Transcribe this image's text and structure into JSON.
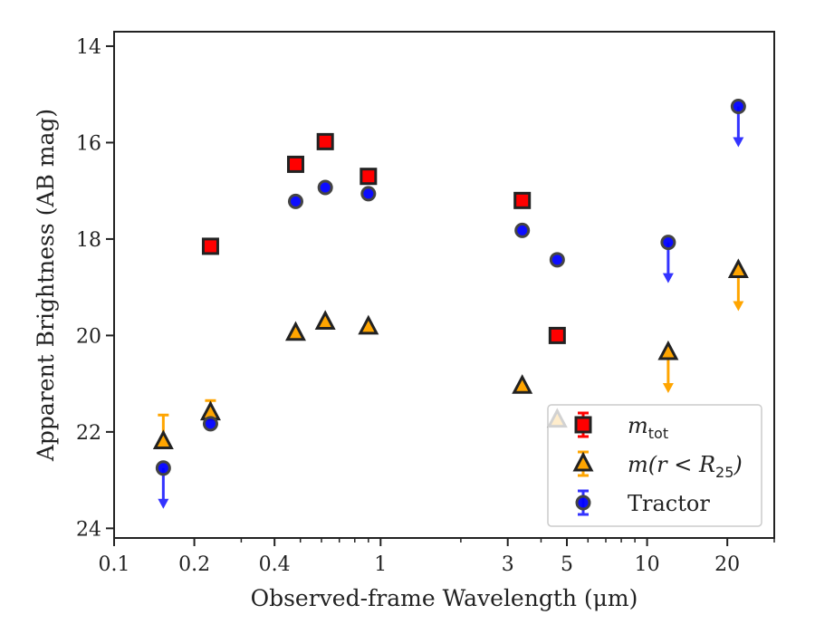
{
  "chart_data": {
    "type": "scatter",
    "xscale": "log",
    "yinverted": true,
    "xlabel": "Observed-frame Wavelength (μm)",
    "ylabel": "Apparent Brightness (AB mag)",
    "xlim": [
      0.1,
      30
    ],
    "ylim": [
      24.2,
      13.7
    ],
    "xticks": [
      0.1,
      0.2,
      0.4,
      1,
      3,
      5,
      10,
      20
    ],
    "xtick_labels": [
      "0.1",
      "0.2",
      "0.4",
      "1",
      "3",
      "5",
      "10",
      "20"
    ],
    "yticks": [
      14,
      16,
      18,
      20,
      22,
      24
    ],
    "ytick_labels": [
      "14",
      "16",
      "18",
      "20",
      "22",
      "24"
    ],
    "grid": false,
    "legend_position": "lower-right",
    "series": [
      {
        "name": "m_tot",
        "legend_main": "m",
        "legend_sub": "tot",
        "marker": "square",
        "color": "#ff0000",
        "edge": "#222222",
        "points": [
          {
            "x": 0.23,
            "y": 18.15
          },
          {
            "x": 0.48,
            "y": 16.45
          },
          {
            "x": 0.62,
            "y": 15.98
          },
          {
            "x": 0.9,
            "y": 16.7
          },
          {
            "x": 3.4,
            "y": 17.2
          },
          {
            "x": 4.6,
            "y": 20.0
          }
        ]
      },
      {
        "name": "m(r<R_25)",
        "legend_main": "m(r < R",
        "legend_sub": "25",
        "legend_tail": ")",
        "marker": "triangle",
        "color": "#ffa500",
        "edge": "#222222",
        "points": [
          {
            "x": 0.153,
            "y": 22.2,
            "err_up": 0.55,
            "err_down": 0.0
          },
          {
            "x": 0.23,
            "y": 21.6,
            "err_up": 0.25,
            "err_down": 0.15
          },
          {
            "x": 0.48,
            "y": 19.95
          },
          {
            "x": 0.62,
            "y": 19.72
          },
          {
            "x": 0.9,
            "y": 19.82
          },
          {
            "x": 3.4,
            "y": 21.05
          },
          {
            "x": 4.6,
            "y": 21.75
          },
          {
            "x": 12.0,
            "y": 20.35,
            "upper_limit": true
          },
          {
            "x": 22.0,
            "y": 18.65,
            "upper_limit": true
          }
        ]
      },
      {
        "name": "Tractor",
        "legend_main": "Tractor",
        "marker": "circle",
        "color": "#0000ff",
        "edge": "#444444",
        "points": [
          {
            "x": 0.153,
            "y": 22.75,
            "upper_limit": true
          },
          {
            "x": 0.23,
            "y": 21.83
          },
          {
            "x": 0.48,
            "y": 17.22
          },
          {
            "x": 0.62,
            "y": 16.93
          },
          {
            "x": 0.9,
            "y": 17.06
          },
          {
            "x": 3.4,
            "y": 17.82
          },
          {
            "x": 4.6,
            "y": 18.43
          },
          {
            "x": 12.0,
            "y": 18.07,
            "upper_limit": true
          },
          {
            "x": 22.0,
            "y": 15.25,
            "upper_limit": true
          }
        ]
      }
    ]
  }
}
